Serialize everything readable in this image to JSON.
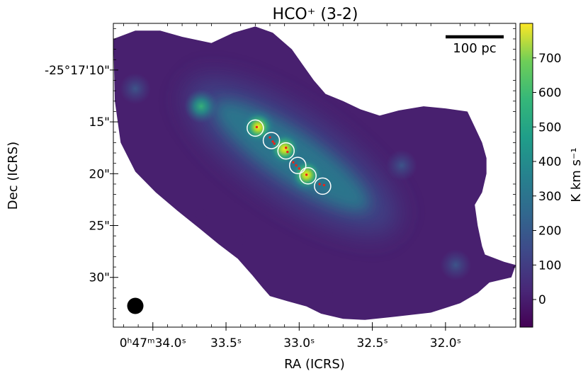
{
  "chart_data": {
    "type": "heatmap",
    "title": "HCO⁺ (3-2)",
    "xlabel": "RA (ICRS)",
    "ylabel": "Dec (ICRS)",
    "x_ticks": [
      {
        "label": "0ʰ47ᵐ34.0ˢ",
        "value": 34.0
      },
      {
        "label": "33.5ˢ",
        "value": 33.5
      },
      {
        "label": "33.0ˢ",
        "value": 33.0
      },
      {
        "label": "32.5ˢ",
        "value": 32.5
      },
      {
        "label": "32.0ˢ",
        "value": 32.0
      }
    ],
    "y_ticks": [
      {
        "label": "-25°17'10\"",
        "value": 10
      },
      {
        "label": "15\"",
        "value": 15
      },
      {
        "label": "20\"",
        "value": 20
      },
      {
        "label": "25\"",
        "value": 25
      },
      {
        "label": "30\"",
        "value": 30
      }
    ],
    "xlim": [
      34.27,
      31.52
    ],
    "ylim_arcsec": [
      5.5,
      34.8
    ],
    "colorbar": {
      "label": "K km s⁻¹",
      "range": [
        -80,
        800
      ],
      "ticks": [
        0,
        100,
        200,
        300,
        400,
        500,
        600,
        700
      ],
      "colormap": "viridis"
    },
    "scale_bar": {
      "label": "100 pc"
    },
    "beam": "filled circle, lower-left",
    "apertures": [
      {
        "ra": 33.3,
        "dec": 15.6
      },
      {
        "ra": 33.19,
        "dec": 16.8
      },
      {
        "ra": 33.09,
        "dec": 17.8
      },
      {
        "ra": 33.01,
        "dec": 19.2
      },
      {
        "ra": 32.94,
        "dec": 20.2
      },
      {
        "ra": 32.84,
        "dec": 21.2
      }
    ],
    "sources": [
      {
        "ra": 33.29,
        "dec": 15.5
      },
      {
        "ra": 33.2,
        "dec": 16.5
      },
      {
        "ra": 33.18,
        "dec": 16.9
      },
      {
        "ra": 33.17,
        "dec": 17.1
      },
      {
        "ra": 33.09,
        "dec": 17.5
      },
      {
        "ra": 33.08,
        "dec": 17.9
      },
      {
        "ra": 33.04,
        "dec": 18.9
      },
      {
        "ra": 33.02,
        "dec": 19.2
      },
      {
        "ra": 33.0,
        "dec": 19.5
      },
      {
        "ra": 32.95,
        "dec": 20.1
      },
      {
        "ra": 32.86,
        "dec": 21.0
      },
      {
        "ra": 32.83,
        "dec": 21.1
      }
    ],
    "emission_peaks": [
      {
        "ra": 33.67,
        "dec": 13.5,
        "value": 430
      },
      {
        "ra": 33.28,
        "dec": 15.5,
        "value": 780
      },
      {
        "ra": 33.1,
        "dec": 17.6,
        "value": 640
      },
      {
        "ra": 32.95,
        "dec": 20.1,
        "value": 560
      },
      {
        "ra": 32.3,
        "dec": 19.2,
        "value": 80
      },
      {
        "ra": 31.93,
        "dec": 28.8,
        "value": 150
      },
      {
        "ra": 34.12,
        "dec": 11.8,
        "value": 60
      }
    ],
    "colors": {
      "aperture": "#ffffff",
      "source": "#e8241a",
      "beam": "#000000",
      "scale_bar": "#000000"
    }
  }
}
